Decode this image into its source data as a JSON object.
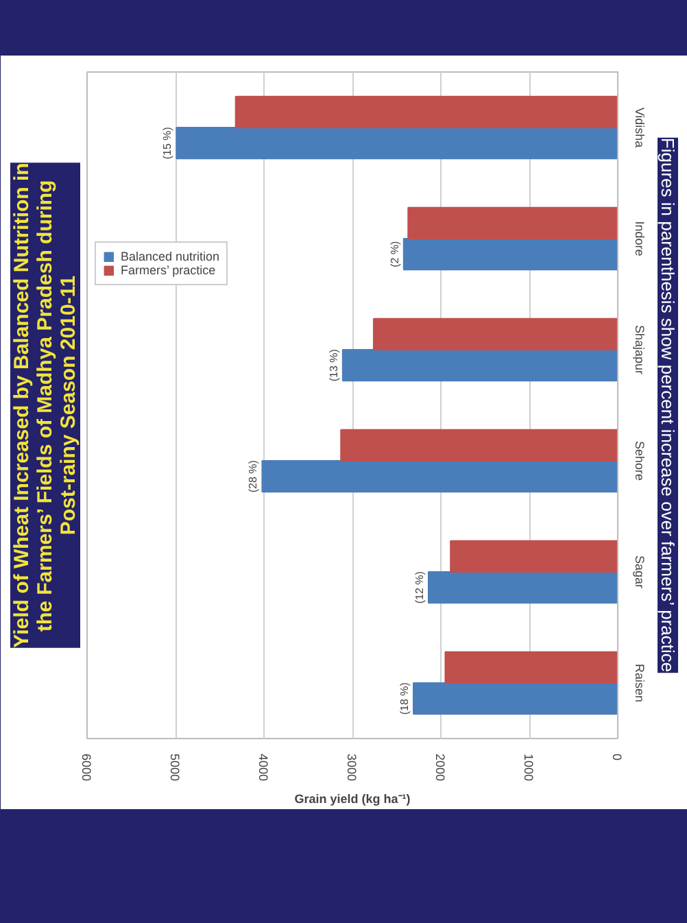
{
  "chart_data": {
    "type": "bar",
    "orientation": "horizontal",
    "title": "Yield of Wheat Increased by Balanced Nutrition in\nthe Farmers’ Fields of Madhya Pradesh during\nPost-rainy Season 2010-11",
    "categories": [
      "Vidisha",
      "Indore",
      "Shajapur",
      "Sehore",
      "Sagar",
      "Raisen"
    ],
    "series": [
      {
        "name": "Balanced nutrition",
        "color": "#4a7ebb",
        "values": [
          4990,
          2420,
          3110,
          4020,
          2140,
          2310
        ]
      },
      {
        "name": "Farmers’ practice",
        "color": "#c0504d",
        "values": [
          4320,
          2370,
          2760,
          3130,
          1890,
          1950
        ]
      }
    ],
    "xlabel": "Grain yield (kg ha⁻¹)",
    "xlim": [
      6000,
      0
    ],
    "xticks": [
      0,
      1000,
      2000,
      3000,
      4000,
      5000,
      6000
    ],
    "grid": "x",
    "legend": "top left",
    "annotations": [
      {
        "text": "(15 %)",
        "x": 4990,
        "y": "Vidisha"
      },
      {
        "text": "(2 %)",
        "x": 2420,
        "y": "Indore"
      },
      {
        "text": "(13 %)",
        "x": 3110,
        "y": "Shajapur"
      },
      {
        "text": "(28 %)",
        "x": 4020,
        "y": "Sehore"
      },
      {
        "text": "(12 %)",
        "x": 2140,
        "y": "Sagar"
      },
      {
        "text": "(18 %)",
        "x": 2310,
        "y": "Raisen"
      },
      "Figures in parenthesis show percent increase over farmers’ practice"
    ]
  }
}
